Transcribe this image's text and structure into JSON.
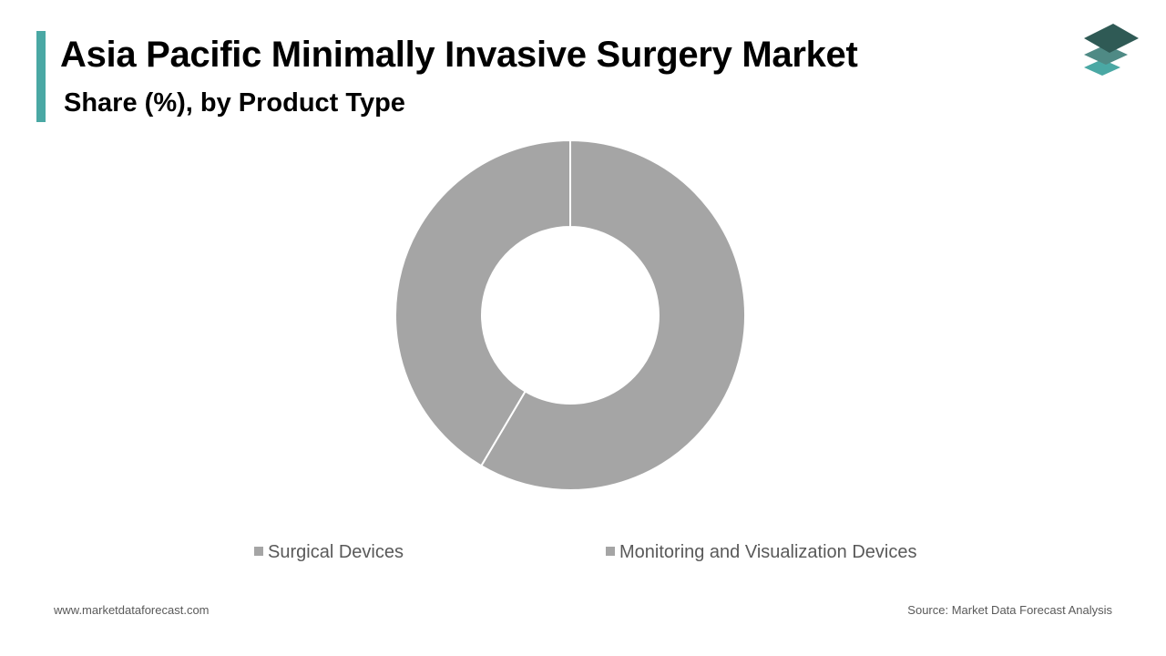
{
  "header": {
    "title": "Asia Pacific Minimally Invasive Surgery Market",
    "subtitle": "Share (%), by Product Type",
    "accent_color": "#4aa8a4"
  },
  "logo": {
    "icon": "stacked-layers-logo-icon",
    "colors": [
      "#2f5a55",
      "#4f8a85",
      "#4aa8a4"
    ]
  },
  "chart_data": {
    "type": "pie",
    "donut": true,
    "title": "",
    "categories": [
      "Surgical Devices",
      "Monitoring and Visualization Devices"
    ],
    "values": [
      58.5,
      41.5
    ],
    "colors": [
      "#a5a5a5",
      "#a5a5a5"
    ],
    "legend_position": "bottom"
  },
  "footer": {
    "website": "www.marketdataforecast.com",
    "source": "Source: Market Data Forecast Analysis"
  }
}
